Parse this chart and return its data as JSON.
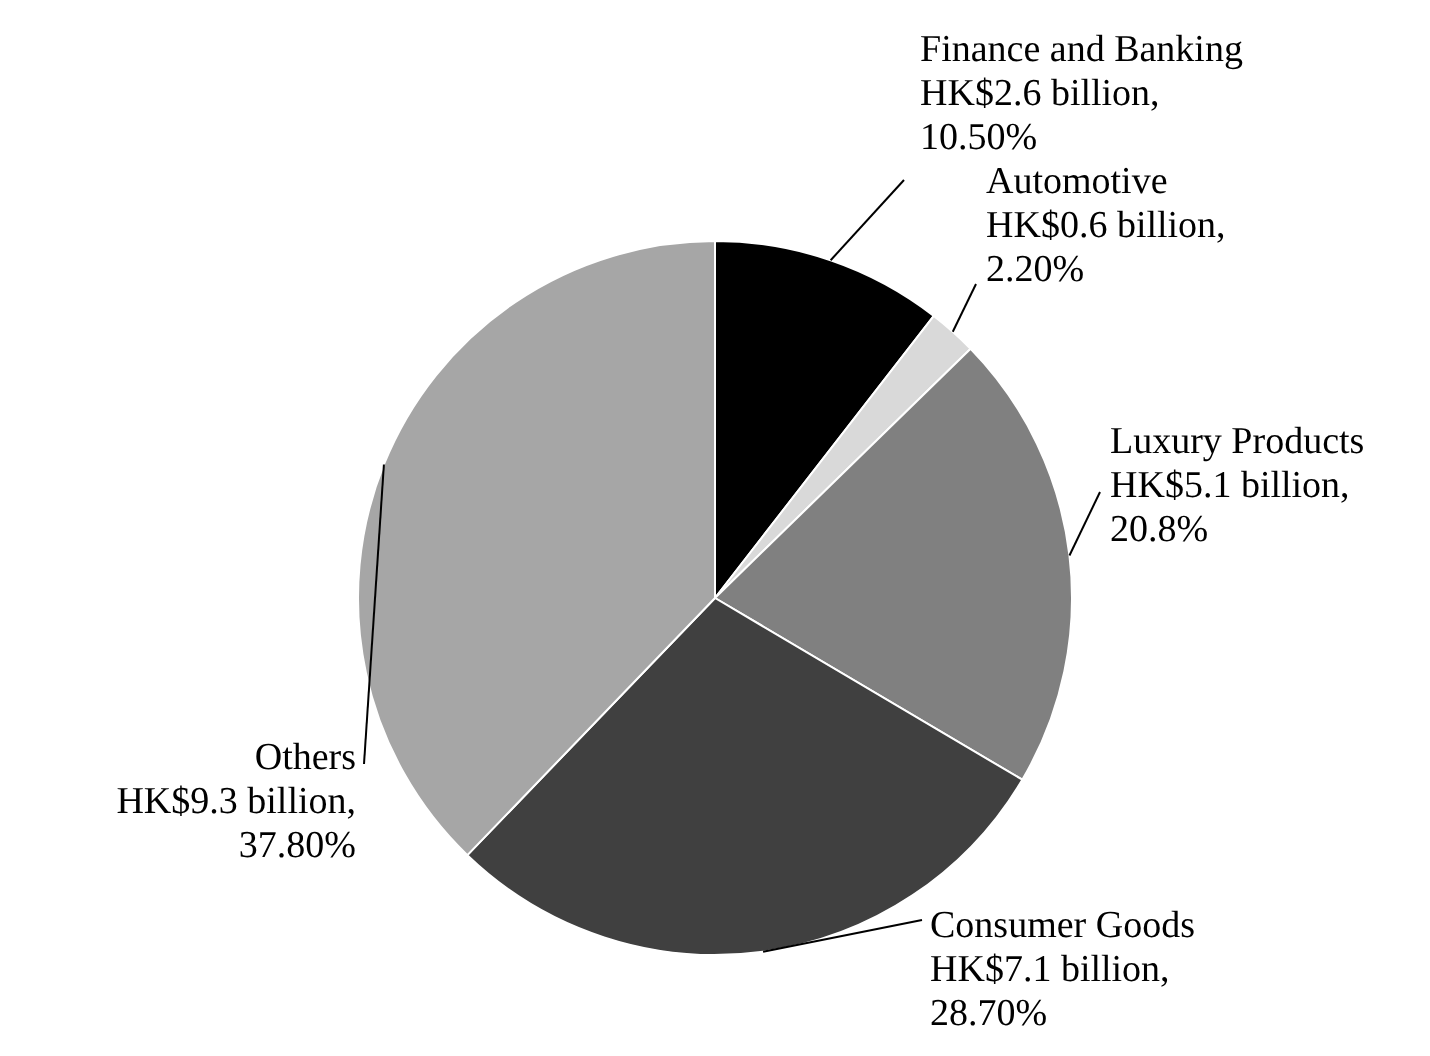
{
  "chart_data": {
    "type": "pie",
    "categories": [
      "Finance and Banking",
      "Automotive",
      "Luxury Products",
      "Consumer Goods",
      "Others"
    ],
    "values": [
      10.5,
      2.2,
      20.8,
      28.7,
      37.8
    ],
    "colors": [
      "#000000",
      "#d9d9d9",
      "#808080",
      "#404040",
      "#a6a6a6"
    ],
    "value_labels": [
      "HK$2.6 billion, 10.50%",
      "HK$0.6 billion, 2.20%",
      "HK$5.1 billion, 20.8%",
      "HK$7.1 billion, 28.70%",
      "HK$9.3 billion, 37.80%"
    ]
  }
}
